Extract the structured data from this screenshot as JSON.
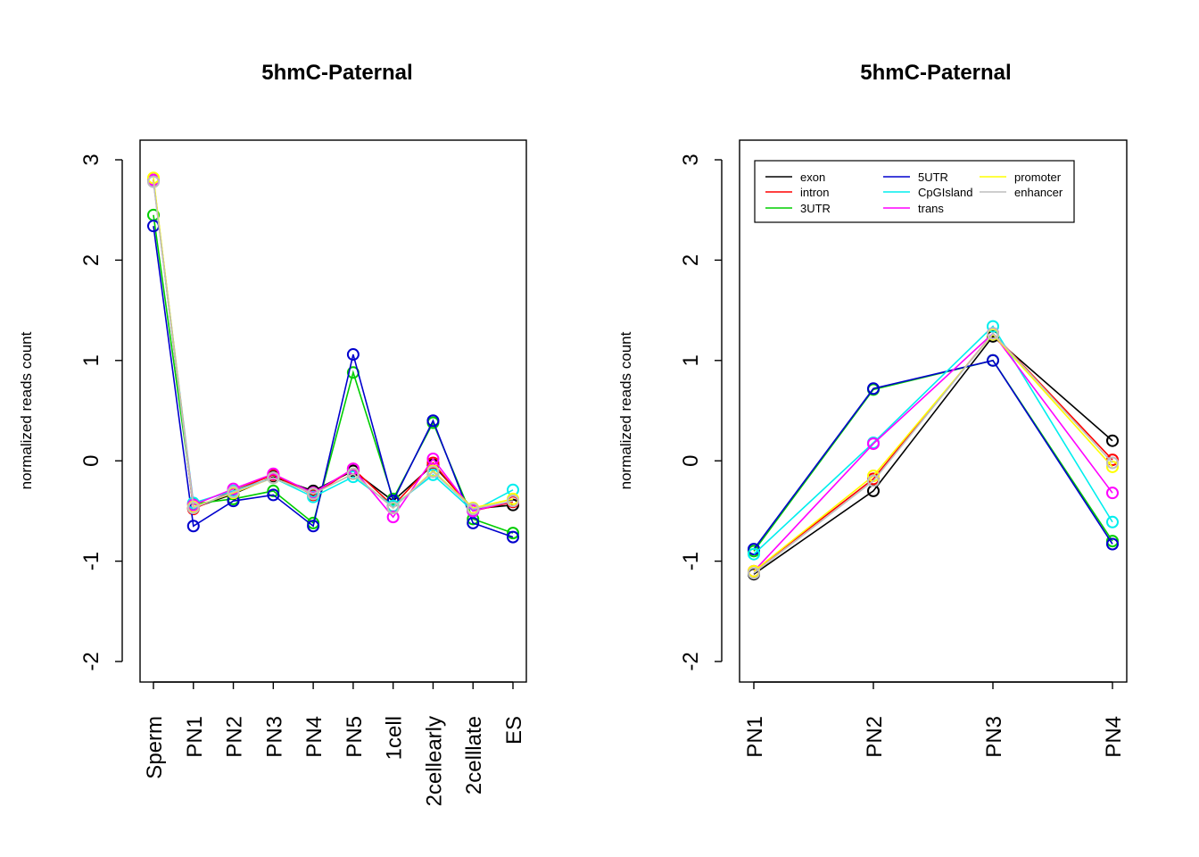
{
  "series_colors": {
    "exon": "#000000",
    "intron": "#ff0000",
    "3UTR": "#00cd00",
    "5UTR": "#0000cd",
    "CpGIsland": "#00eeee",
    "trans": "#ff00ff",
    "promoter": "#ffff00",
    "enhancer": "#bebebe"
  },
  "chart_data": [
    {
      "type": "line",
      "title": "5hmC-Paternal",
      "xlabel": "",
      "ylabel": "normalized reads count",
      "ylim": [
        -2.2,
        3.2
      ],
      "yticks": [
        "-2",
        "-1",
        "0",
        "1",
        "2",
        "3"
      ],
      "categories": [
        "Sperm",
        "PN1",
        "PN2",
        "PN3",
        "PN4",
        "PN5",
        "1cell",
        "2cellearly",
        "2celllate",
        "ES"
      ],
      "legend": false,
      "series": [
        {
          "key": "exon",
          "values": [
            2.8,
            -0.47,
            -0.33,
            -0.16,
            -0.3,
            -0.1,
            -0.4,
            -0.04,
            -0.48,
            -0.44
          ]
        },
        {
          "key": "intron",
          "values": [
            2.8,
            -0.48,
            -0.3,
            -0.14,
            -0.34,
            -0.08,
            -0.45,
            -0.02,
            -0.5,
            -0.41
          ]
        },
        {
          "key": "3UTR",
          "values": [
            2.45,
            -0.43,
            -0.38,
            -0.3,
            -0.62,
            0.88,
            -0.38,
            0.38,
            -0.58,
            -0.72
          ]
        },
        {
          "key": "5UTR",
          "values": [
            2.34,
            -0.65,
            -0.4,
            -0.34,
            -0.65,
            1.06,
            -0.4,
            0.4,
            -0.62,
            -0.76
          ]
        },
        {
          "key": "CpGIsland",
          "values": [
            2.8,
            -0.42,
            -0.3,
            -0.17,
            -0.36,
            -0.16,
            -0.45,
            -0.14,
            -0.5,
            -0.29
          ]
        },
        {
          "key": "trans",
          "values": [
            2.8,
            -0.44,
            -0.28,
            -0.13,
            -0.32,
            -0.08,
            -0.56,
            0.02,
            -0.5,
            -0.4
          ]
        },
        {
          "key": "promoter",
          "values": [
            2.82,
            -0.46,
            -0.32,
            -0.17,
            -0.33,
            -0.13,
            -0.47,
            -0.1,
            -0.47,
            -0.38
          ]
        },
        {
          "key": "enhancer",
          "values": [
            2.78,
            -0.47,
            -0.31,
            -0.17,
            -0.33,
            -0.13,
            -0.47,
            -0.11,
            -0.48,
            -0.4
          ]
        }
      ]
    },
    {
      "type": "line",
      "title": "5hmC-Paternal",
      "xlabel": "",
      "ylabel": "normalized reads count",
      "ylim": [
        -2.2,
        3.2
      ],
      "yticks": [
        "-2",
        "-1",
        "0",
        "1",
        "2",
        "3"
      ],
      "categories": [
        "PN1",
        "PN2",
        "PN3",
        "PN4"
      ],
      "legend": "top-left",
      "series": [
        {
          "key": "exon",
          "name": "exon",
          "values": [
            -1.13,
            -0.3,
            1.24,
            0.2
          ]
        },
        {
          "key": "intron",
          "name": "intron",
          "values": [
            -1.1,
            -0.18,
            1.27,
            0.01
          ]
        },
        {
          "key": "3UTR",
          "name": "3UTR",
          "values": [
            -0.9,
            0.71,
            1.0,
            -0.8
          ]
        },
        {
          "key": "5UTR",
          "name": "5UTR",
          "values": [
            -0.88,
            0.72,
            1.0,
            -0.83
          ]
        },
        {
          "key": "CpGIsland",
          "name": "CpGIsland",
          "values": [
            -0.93,
            0.18,
            1.34,
            -0.61
          ]
        },
        {
          "key": "trans",
          "name": "trans",
          "values": [
            -1.1,
            0.17,
            1.27,
            -0.32
          ]
        },
        {
          "key": "promoter",
          "name": "promoter",
          "values": [
            -1.1,
            -0.15,
            1.26,
            -0.06
          ]
        },
        {
          "key": "enhancer",
          "name": "enhancer",
          "values": [
            -1.12,
            -0.2,
            1.27,
            -0.02
          ]
        }
      ]
    }
  ]
}
